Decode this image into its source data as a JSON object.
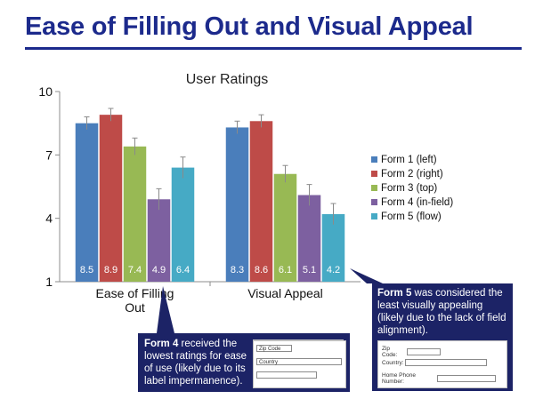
{
  "page": {
    "title": "Ease of Filling Out and Visual Appeal"
  },
  "chart_data": {
    "type": "bar",
    "title": "User Ratings",
    "categories": [
      "Ease of Filling Out",
      "Visual Appeal"
    ],
    "category_lines": [
      [
        "Ease of Filling",
        "Out"
      ],
      [
        "Visual Appeal"
      ]
    ],
    "series": [
      {
        "name": "Form 1 (left)",
        "color": "#4a7ebb",
        "values": [
          8.5,
          8.3
        ],
        "error": [
          0.3,
          0.3
        ]
      },
      {
        "name": "Form 2 (right)",
        "color": "#be4b48",
        "values": [
          8.9,
          8.6
        ],
        "error": [
          0.3,
          0.3
        ]
      },
      {
        "name": "Form 3 (top)",
        "color": "#98b954",
        "values": [
          7.4,
          6.1
        ],
        "error": [
          0.4,
          0.4
        ]
      },
      {
        "name": "Form 4 (in-field)",
        "color": "#7d60a0",
        "values": [
          4.9,
          5.1
        ],
        "error": [
          0.5,
          0.5
        ]
      },
      {
        "name": "Form 5 (flow)",
        "color": "#46aac5",
        "values": [
          6.4,
          4.2
        ],
        "error": [
          0.5,
          0.5
        ]
      }
    ],
    "data_labels": [
      [
        "8.5",
        "8.9",
        "7.4",
        "4.9",
        "6.4"
      ],
      [
        "8.3",
        "8.6",
        "6.1",
        "5.1",
        "4.2"
      ]
    ],
    "ylim": [
      1,
      10
    ],
    "yticks": [
      1,
      4,
      7,
      10
    ],
    "legend_position": "right",
    "grid": false,
    "error_bars": true
  },
  "callouts": {
    "form4": {
      "bold": "Form 4",
      "text": " received the lowest ratings for ease of use (likely due to its label impermanence).",
      "mini_form": {
        "fields": [
          "Zip Code",
          "Country",
          ""
        ]
      }
    },
    "form5": {
      "bold": "Form 5",
      "text": " was considered the least visually appealing (likely due to the lack of field alignment).",
      "mini_form": {
        "labels": [
          "Zip Code:",
          "Country:",
          "Home Phone Number:"
        ]
      }
    }
  }
}
